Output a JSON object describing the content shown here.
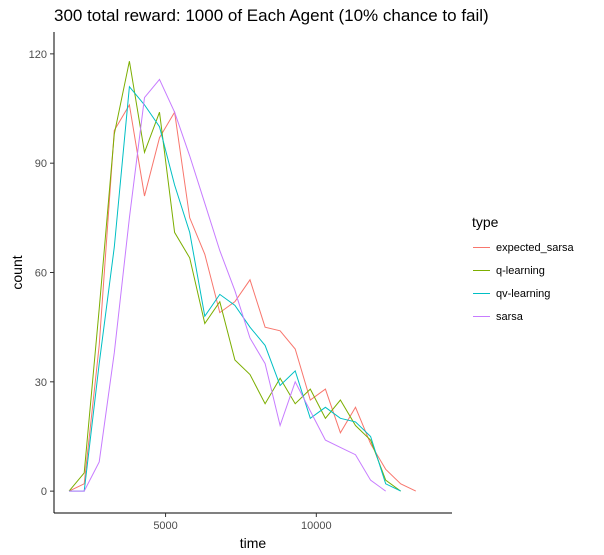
{
  "chart_data": {
    "type": "line",
    "title": "300 total reward: 1000 of Each Agent (10% chance to fail)",
    "xlabel": "time",
    "ylabel": "count",
    "xlim": [
      1300,
      14500
    ],
    "ylim": [
      -6,
      126
    ],
    "xticks": [
      5000,
      10000
    ],
    "xtick_labels": [
      "5000",
      "10000"
    ],
    "yticks": [
      0,
      30,
      60,
      90,
      120
    ],
    "ytick_labels": [
      "0",
      "30",
      "60",
      "90",
      "120"
    ],
    "grid": false,
    "legend": {
      "title": "type",
      "position": "right"
    },
    "series": [
      {
        "name": "expected_sarsa",
        "color": "#F8766D",
        "points": [
          [
            1800,
            0
          ],
          [
            2300,
            2
          ],
          [
            2800,
            40
          ],
          [
            3300,
            99
          ],
          [
            3800,
            106
          ],
          [
            4300,
            81
          ],
          [
            4800,
            97
          ],
          [
            5300,
            104
          ],
          [
            5800,
            75
          ],
          [
            6300,
            65
          ],
          [
            6800,
            49
          ],
          [
            7300,
            52
          ],
          [
            7800,
            58
          ],
          [
            8300,
            45
          ],
          [
            8800,
            44
          ],
          [
            9300,
            39
          ],
          [
            9800,
            25
          ],
          [
            10300,
            28
          ],
          [
            10800,
            16
          ],
          [
            11300,
            23
          ],
          [
            11800,
            13
          ],
          [
            12300,
            6
          ],
          [
            12800,
            2
          ],
          [
            13300,
            0
          ]
        ]
      },
      {
        "name": "q-learning",
        "color": "#7CAE00",
        "points": [
          [
            1800,
            0
          ],
          [
            2300,
            5
          ],
          [
            2800,
            50
          ],
          [
            3300,
            98
          ],
          [
            3800,
            118
          ],
          [
            4300,
            93
          ],
          [
            4800,
            104
          ],
          [
            5300,
            71
          ],
          [
            5800,
            64
          ],
          [
            6300,
            46
          ],
          [
            6800,
            52
          ],
          [
            7300,
            36
          ],
          [
            7800,
            32
          ],
          [
            8300,
            24
          ],
          [
            8800,
            31
          ],
          [
            9300,
            24
          ],
          [
            9800,
            28
          ],
          [
            10300,
            20
          ],
          [
            10800,
            25
          ],
          [
            11300,
            18
          ],
          [
            11800,
            14
          ],
          [
            12300,
            3
          ],
          [
            12800,
            0
          ]
        ]
      },
      {
        "name": "qv-learning",
        "color": "#00BFC4",
        "points": [
          [
            1800,
            0
          ],
          [
            2300,
            0
          ],
          [
            2800,
            35
          ],
          [
            3300,
            67
          ],
          [
            3800,
            111
          ],
          [
            4300,
            106
          ],
          [
            4800,
            100
          ],
          [
            5300,
            84
          ],
          [
            5800,
            71
          ],
          [
            6300,
            48
          ],
          [
            6800,
            54
          ],
          [
            7300,
            51
          ],
          [
            7800,
            45
          ],
          [
            8300,
            40
          ],
          [
            8800,
            29
          ],
          [
            9300,
            33
          ],
          [
            9800,
            20
          ],
          [
            10300,
            23
          ],
          [
            10800,
            20
          ],
          [
            11300,
            19
          ],
          [
            11800,
            15
          ],
          [
            12300,
            2
          ],
          [
            12800,
            0
          ]
        ]
      },
      {
        "name": "sarsa",
        "color": "#C77CFF",
        "points": [
          [
            1800,
            0
          ],
          [
            2300,
            0
          ],
          [
            2800,
            8
          ],
          [
            3300,
            38
          ],
          [
            3800,
            75
          ],
          [
            4300,
            108
          ],
          [
            4800,
            113
          ],
          [
            5300,
            104
          ],
          [
            5800,
            92
          ],
          [
            6300,
            79
          ],
          [
            6800,
            66
          ],
          [
            7300,
            55
          ],
          [
            7800,
            42
          ],
          [
            8300,
            35
          ],
          [
            8800,
            18
          ],
          [
            9300,
            30
          ],
          [
            9800,
            22
          ],
          [
            10300,
            14
          ],
          [
            10800,
            12
          ],
          [
            11300,
            10
          ],
          [
            11800,
            3
          ],
          [
            12300,
            0
          ]
        ]
      }
    ]
  }
}
